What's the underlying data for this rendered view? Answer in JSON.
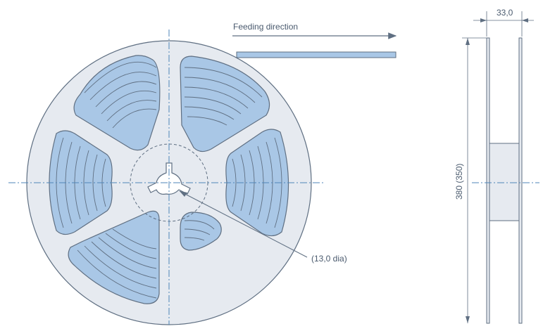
{
  "labels": {
    "feeding_direction": "Feeding direction",
    "hub_diameter": "(13,0 dia)",
    "reel_width": "33,0",
    "reel_diameter": "380 (350)"
  },
  "colors": {
    "reel_fill": "#e6eaf0",
    "tape_fill": "#a9c7e6",
    "line": "#5f6f82",
    "accent_line": "#4f86b8"
  }
}
